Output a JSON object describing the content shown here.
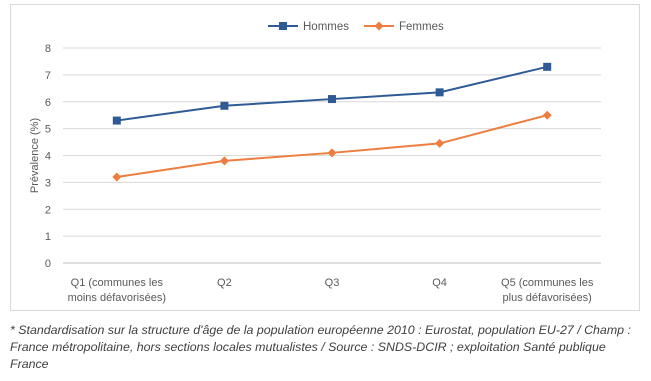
{
  "chart_data": {
    "type": "line",
    "categories": [
      [
        "Q1 (communes les",
        "moins défavorisées)"
      ],
      [
        "Q2"
      ],
      [
        "Q3"
      ],
      [
        "Q4"
      ],
      [
        "Q5 (communes les",
        "plus défavorisées)"
      ]
    ],
    "series": [
      {
        "name": "Hommes",
        "values": [
          5.3,
          5.85,
          6.1,
          6.35,
          7.3
        ],
        "color": "#2e5b96",
        "marker": "square"
      },
      {
        "name": "Femmes",
        "values": [
          3.2,
          3.8,
          4.1,
          4.45,
          5.5
        ],
        "color": "#ee7d40",
        "marker": "diamond"
      }
    ],
    "ylabel": "Prévalence (%)",
    "xlabel": "",
    "ylim": [
      0,
      8
    ],
    "yticks": [
      0,
      1,
      2,
      3,
      4,
      5,
      6,
      7,
      8
    ],
    "grid": true,
    "legend_position": "top-center"
  },
  "footnote": "* Standardisation sur la structure d'âge de la population européenne 2010 : Eurostat, population EU-27 / Champ : France métropolitaine, hors sections locales mutualistes / Source : SNDS-DCIR ; exploitation Santé publique France"
}
